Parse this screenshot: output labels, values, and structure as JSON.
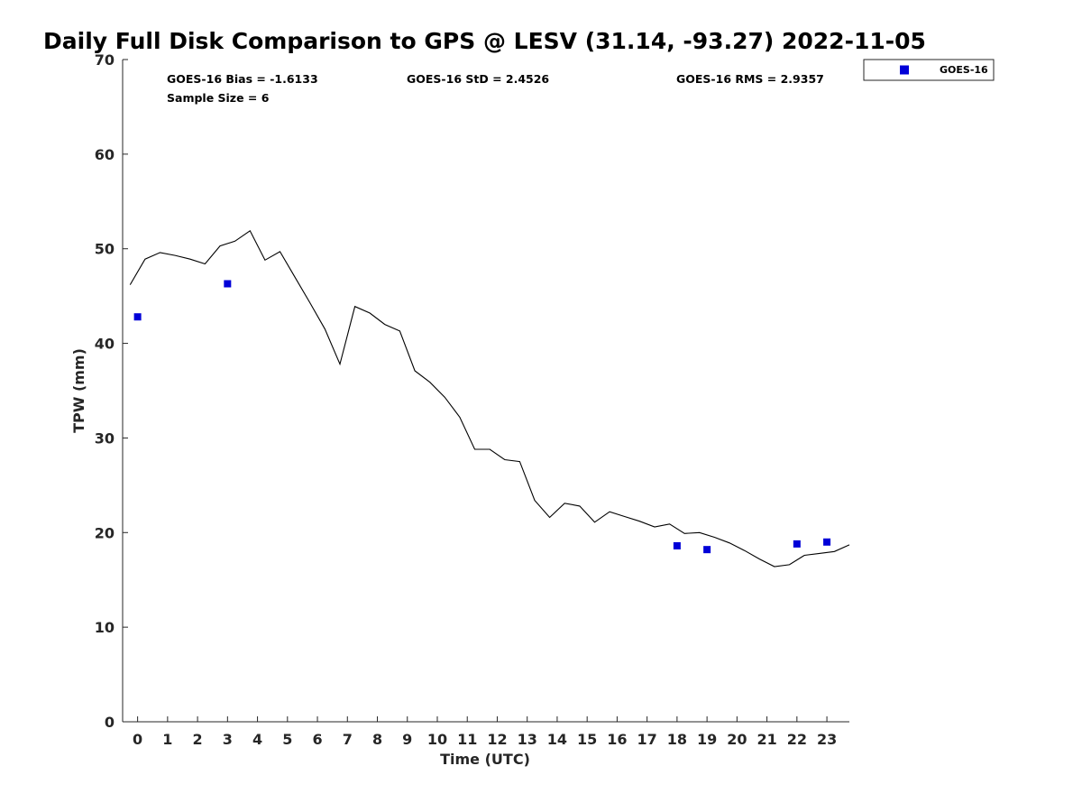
{
  "chart_data": {
    "type": "line+scatter",
    "title": "Daily Full Disk Comparison to GPS @ LESV (31.14, -93.27) 2022-11-05",
    "xlabel": "Time (UTC)",
    "ylabel": "TPW (mm)",
    "xlim": [
      -0.5,
      23.75
    ],
    "ylim": [
      0,
      70
    ],
    "xticks": [
      0,
      1,
      2,
      3,
      4,
      5,
      6,
      7,
      8,
      9,
      10,
      11,
      12,
      13,
      14,
      15,
      16,
      17,
      18,
      19,
      20,
      21,
      22,
      23
    ],
    "yticks": [
      0,
      10,
      20,
      30,
      40,
      50,
      60,
      70
    ],
    "grid": false,
    "legend": {
      "position": "top-right",
      "entries": [
        "GOES-16"
      ]
    },
    "stats": {
      "bias": "GOES-16 Bias = -1.6133",
      "std": "GOES-16 StD = 2.4526",
      "rms": "GOES-16 RMS = 2.9357",
      "sample": "Sample Size = 6"
    },
    "series": [
      {
        "name": "GPS",
        "style": "line",
        "color": "#000000",
        "x": [
          -0.25,
          0.25,
          0.75,
          1.25,
          1.75,
          2.25,
          2.75,
          3.25,
          3.75,
          4.25,
          4.75,
          5.25,
          5.75,
          6.25,
          6.75,
          7.25,
          7.75,
          8.25,
          8.75,
          9.25,
          9.75,
          10.25,
          10.75,
          11.25,
          11.75,
          12.25,
          12.75,
          13.25,
          13.75,
          14.25,
          14.75,
          15.25,
          15.75,
          16.25,
          16.75,
          17.25,
          17.75,
          18.25,
          18.75,
          19.25,
          19.75,
          20.25,
          20.75,
          21.25,
          21.75,
          22.25,
          22.75,
          23.25,
          23.75
        ],
        "values": [
          46.2,
          48.9,
          49.6,
          49.3,
          48.9,
          48.4,
          50.3,
          50.8,
          51.9,
          48.8,
          49.7,
          47.0,
          44.3,
          41.5,
          37.8,
          43.9,
          43.2,
          42.0,
          41.3,
          37.1,
          35.9,
          34.3,
          32.2,
          28.8,
          28.8,
          27.7,
          27.5,
          23.4,
          21.6,
          23.1,
          22.8,
          21.1,
          22.2,
          21.7,
          21.2,
          20.6,
          20.9,
          19.9,
          20.0,
          19.5,
          18.9,
          18.1,
          17.2,
          16.4,
          16.6,
          17.6,
          17.8,
          18.0,
          18.7
        ]
      },
      {
        "name": "GOES-16",
        "style": "marker-square",
        "color": "#0000d8",
        "x": [
          0,
          3,
          18,
          19,
          22,
          23
        ],
        "values": [
          42.8,
          46.3,
          18.6,
          18.2,
          18.8,
          19.0
        ]
      }
    ]
  }
}
